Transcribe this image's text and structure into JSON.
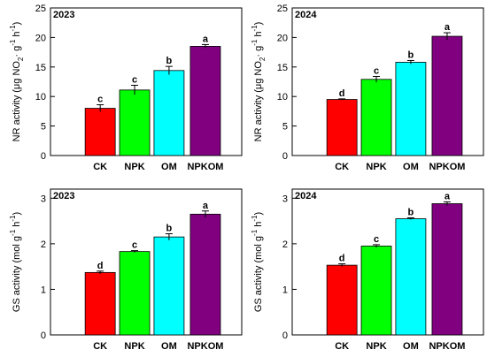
{
  "chart_data": [
    {
      "type": "bar",
      "year_label": "2023",
      "ylabel_main": "NR activity (μg NO",
      "ylabel_sub": "2",
      "ylabel_tail": "· g",
      "ylabel_sup1": "-1",
      "ylabel_mid": " h",
      "ylabel_sup2": "-1",
      "ylabel_close": ")",
      "categories": [
        "CK",
        "NPK",
        "OM",
        "NPKOM"
      ],
      "values": [
        8.0,
        11.1,
        14.4,
        18.5
      ],
      "errors": [
        0.6,
        0.8,
        0.7,
        0.3
      ],
      "letters": [
        "c",
        "c",
        "b",
        "a"
      ],
      "colors": [
        "#ff0000",
        "#00ff00",
        "#00ffff",
        "#800080"
      ],
      "ylim": [
        0,
        25
      ],
      "yticks": [
        "0",
        "5",
        "10",
        "15",
        "20",
        "25"
      ]
    },
    {
      "type": "bar",
      "year_label": "2024",
      "ylabel_main": "NR activity (μg NO",
      "ylabel_sub": "2",
      "ylabel_tail": "· g",
      "ylabel_sup1": "-1",
      "ylabel_mid": " h",
      "ylabel_sup2": "-1",
      "ylabel_close": ")",
      "categories": [
        "CK",
        "NPK",
        "OM",
        "NPKOM"
      ],
      "values": [
        9.5,
        12.9,
        15.8,
        20.2
      ],
      "errors": [
        0.1,
        0.5,
        0.3,
        0.6
      ],
      "letters": [
        "d",
        "c",
        "b",
        "a"
      ],
      "colors": [
        "#ff0000",
        "#00ff00",
        "#00ffff",
        "#800080"
      ],
      "ylim": [
        0,
        25
      ],
      "yticks": [
        "0",
        "5",
        "10",
        "15",
        "20",
        "25"
      ]
    },
    {
      "type": "bar",
      "year_label": "2023",
      "ylabel_main": "GS activity (mol g",
      "ylabel_sup1": "-1",
      "ylabel_mid": " h",
      "ylabel_sup2": "-1",
      "ylabel_close": ")",
      "categories": [
        "CK",
        "NPK",
        "OM",
        "NPKOM"
      ],
      "values": [
        1.37,
        1.83,
        2.15,
        2.65
      ],
      "errors": [
        0.03,
        0.02,
        0.07,
        0.07
      ],
      "letters": [
        "d",
        "c",
        "b",
        "a"
      ],
      "colors": [
        "#ff0000",
        "#00ff00",
        "#00ffff",
        "#800080"
      ],
      "ylim": [
        0,
        3.2
      ],
      "yticks": [
        "0",
        "1",
        "2",
        "3"
      ]
    },
    {
      "type": "bar",
      "year_label": "2024",
      "ylabel_main": "GS activity (mol g",
      "ylabel_sup1": "-1",
      "ylabel_mid": " h",
      "ylabel_sup2": "-1",
      "ylabel_close": ")",
      "categories": [
        "CK",
        "NPK",
        "OM",
        "NPKOM"
      ],
      "values": [
        1.53,
        1.95,
        2.55,
        2.88
      ],
      "errors": [
        0.03,
        0.03,
        0.02,
        0.04
      ],
      "letters": [
        "d",
        "c",
        "b",
        "a"
      ],
      "colors": [
        "#ff0000",
        "#00ff00",
        "#00ffff",
        "#800080"
      ],
      "ylim": [
        0,
        3.2
      ],
      "yticks": [
        "0",
        "1",
        "2",
        "3"
      ]
    }
  ]
}
